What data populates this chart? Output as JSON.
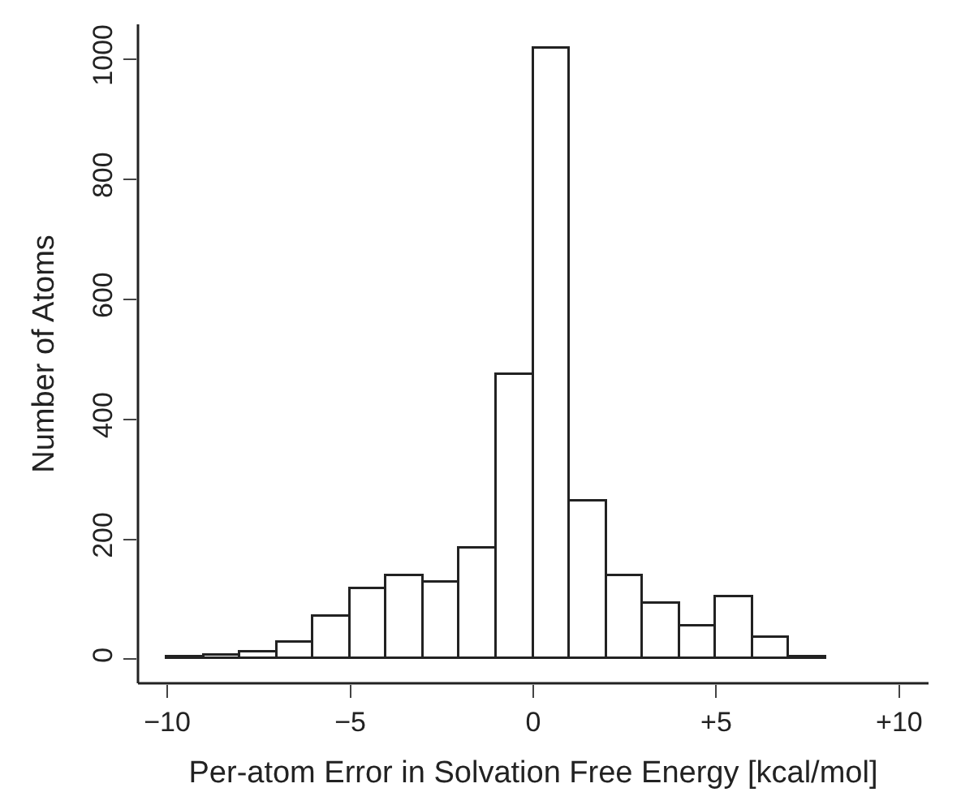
{
  "chart_data": {
    "type": "histogram",
    "xlabel": "Per-atom Error in Solvation Free Energy [kcal/mol]",
    "ylabel": "Number of Atoms",
    "bins": [
      -10,
      -9,
      -8,
      -7,
      -6,
      -5,
      -4,
      -3,
      -2,
      -1,
      0,
      1,
      2,
      3,
      4,
      5,
      6,
      7,
      8
    ],
    "values": [
      2,
      5,
      12,
      27,
      71,
      117,
      139,
      129,
      184,
      474,
      1017,
      263,
      139,
      92,
      54,
      102,
      35,
      3
    ],
    "color": "#ffffff",
    "xlim": [
      -10.8,
      10.8
    ],
    "ylim": [
      -40,
      1058
    ],
    "xticks": [
      {
        "value": -10,
        "label": "−10"
      },
      {
        "value": -5,
        "label": "−5"
      },
      0,
      {
        "value": 5,
        "label": "+5"
      },
      {
        "value": 10,
        "label": "+10"
      }
    ],
    "yticks": [
      0,
      200,
      400,
      600,
      800,
      1000
    ]
  }
}
